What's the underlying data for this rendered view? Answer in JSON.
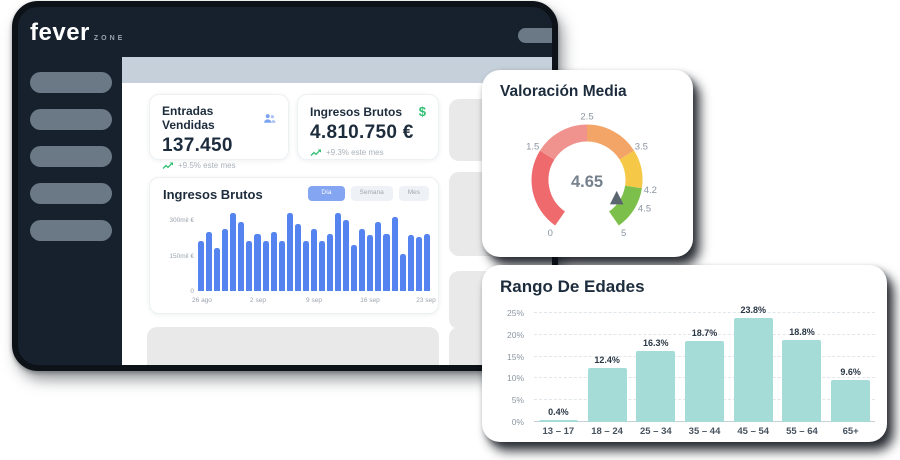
{
  "window": {
    "logo": {
      "brand": "fever",
      "suffix": "ZONE"
    }
  },
  "stats": [
    {
      "title": "Entradas Vendidas",
      "icon": "people-icon",
      "value": "137.450",
      "trend": "+9.5% este mes"
    },
    {
      "title": "Ingresos Brutos",
      "icon": "dollar-icon",
      "icon_glyph": "$",
      "value": "4.810.750 €",
      "trend": "+9.3% este mes"
    }
  ],
  "chart_data": [
    {
      "id": "ingresos-brutos",
      "type": "bar",
      "title": "Ingresos Brutos",
      "tabs": [
        "Día",
        "Semana",
        "Mes"
      ],
      "active_tab": "Día",
      "unit": "mil €",
      "ylim": [
        0,
        360
      ],
      "y_ticks": [
        {
          "value": 0,
          "label": "0"
        },
        {
          "value": 150,
          "label": "150mil €"
        },
        {
          "value": 300,
          "label": "300mil €"
        }
      ],
      "x_tick_labels": [
        "26 ago",
        "2 sep",
        "9 sep",
        "16 sep",
        "23 sep"
      ],
      "x_tick_indices": [
        0,
        7,
        14,
        21,
        28
      ],
      "values": [
        210,
        248,
        183,
        262,
        330,
        292,
        212,
        240,
        212,
        250,
        212,
        330,
        286,
        213,
        263,
        213,
        240,
        331,
        303,
        196,
        262,
        238,
        291,
        240,
        312,
        158,
        238,
        228,
        243
      ],
      "bar_color": "#5584f0",
      "grid": false,
      "legend": "none"
    },
    {
      "id": "valoracion-media",
      "type": "gauge",
      "title": "Valoración Media",
      "value": 4.65,
      "value_label": "4.65",
      "min": 0,
      "max": 5,
      "start_angle": -145,
      "end_angle": 145,
      "tick_values": [
        0,
        1.5,
        2.5,
        3.5,
        4.2,
        4.5,
        5
      ],
      "tick_labels": [
        "0",
        "1.5",
        "2.5",
        "3.5",
        "4.2",
        "4.5",
        "5"
      ],
      "pointer_value": 4.6,
      "pointer_color": "#5a6570",
      "segments": [
        {
          "from": 0,
          "to": 1.5,
          "color": "#ee6a6d"
        },
        {
          "from": 1.5,
          "to": 2.5,
          "color": "#f0928d"
        },
        {
          "from": 2.5,
          "to": 3.5,
          "color": "#f2a567"
        },
        {
          "from": 3.5,
          "to": 4.2,
          "color": "#f6c847"
        },
        {
          "from": 4.2,
          "to": 5,
          "color": "#7cbf4b"
        }
      ]
    },
    {
      "id": "rango-edades",
      "type": "bar",
      "title": "Rango De Edades",
      "categories": [
        "13 – 17",
        "18 – 24",
        "25 – 34",
        "35 – 44",
        "45 – 54",
        "55 – 64",
        "65+"
      ],
      "values": [
        0.4,
        12.4,
        16.3,
        18.7,
        23.8,
        18.8,
        9.6
      ],
      "value_labels": [
        "0.4%",
        "12.4%",
        "16.3%",
        "18.7%",
        "23.8%",
        "18.8%",
        "9.6%"
      ],
      "ylim": [
        0,
        25
      ],
      "y_ticks": [
        {
          "value": 0,
          "label": "0%"
        },
        {
          "value": 5,
          "label": "5%"
        },
        {
          "value": 10,
          "label": "10%"
        },
        {
          "value": 15,
          "label": "15%"
        },
        {
          "value": 20,
          "label": "20%"
        },
        {
          "value": 25,
          "label": "25%"
        }
      ],
      "bar_color": "#a6dcd8",
      "grid": true,
      "legend": "none"
    }
  ],
  "colors": {
    "window_bg": "#16212d",
    "window_border": "#0d1218",
    "sidebar_item": "#6b7987",
    "topbar_strip": "#c5d0da",
    "accent_blue": "#5584f0",
    "accent_green": "#2fbf71",
    "teal": "#a6dcd8",
    "placeholder": "#e9e9e9",
    "text_dark": "#1d2c3d",
    "text_gray": "#9aa3ad"
  }
}
